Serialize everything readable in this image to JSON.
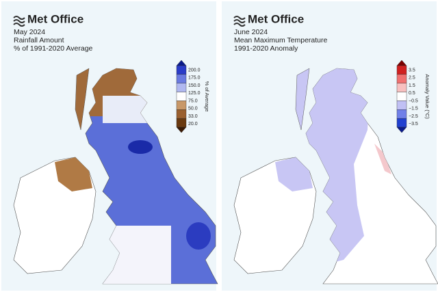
{
  "panels": [
    {
      "logo": "Met Office",
      "title": [
        "May 2024",
        "Rainfall Amount",
        "% of 1991-2020 Average"
      ],
      "colorbar": {
        "labels": [
          "200.0",
          "175.0",
          "150.0",
          "125.0",
          "75.0",
          "50.0",
          "33.0",
          "20.0"
        ],
        "axis_label": "% of Average"
      }
    },
    {
      "logo": "Met Office",
      "title": [
        "June 2024",
        "Mean Maximum Temperature",
        "1991-2020 Anomaly"
      ],
      "colorbar": {
        "labels": [
          "3.5",
          "2.5",
          "1.5",
          "0.5",
          "−0.5",
          "−1.5",
          "−2.5",
          "−3.5"
        ],
        "axis_label": "Anomaly Value (°C)"
      }
    }
  ]
}
